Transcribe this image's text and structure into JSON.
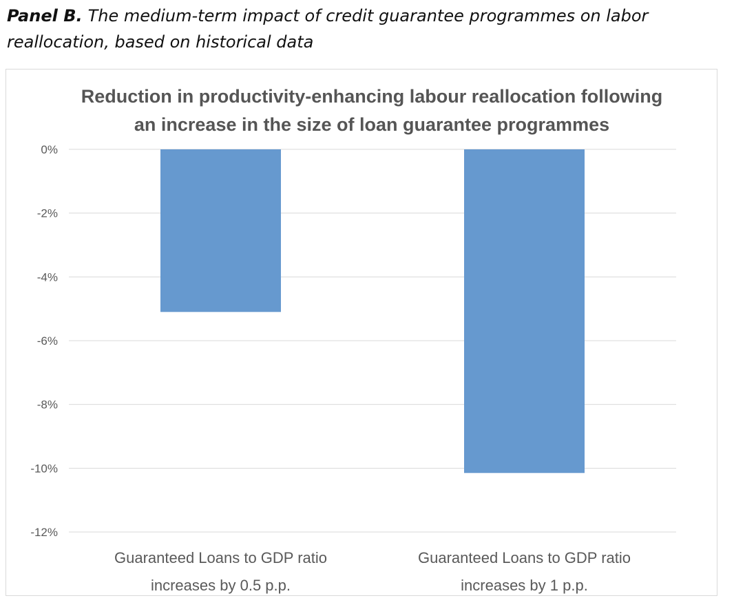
{
  "caption": {
    "label": "Panel B.",
    "text": "The medium-term impact of credit guarantee programmes on labor reallocation, based on historical data"
  },
  "colors": {
    "bar": "#6699cf",
    "grid": "#d9d9d9",
    "text": "#595959",
    "title": "#555555"
  },
  "chart_data": {
    "type": "bar",
    "title_lines": [
      "Reduction in productivity-enhancing labour reallocation following",
      "an increase in the size of loan guarantee programmes"
    ],
    "categories": [
      [
        "Guaranteed Loans to GDP ratio",
        "increases by 0.5 p.p."
      ],
      [
        "Guaranteed Loans to GDP ratio",
        "increases by 1 p.p."
      ]
    ],
    "values": [
      -5.1,
      -10.15
    ],
    "ylim": [
      -12,
      0
    ],
    "yticks": [
      0,
      -2,
      -4,
      -6,
      -8,
      -10,
      -12
    ],
    "ytick_labels": [
      "0%",
      "-2%",
      "-4%",
      "-6%",
      "-8%",
      "-10%",
      "-12%"
    ],
    "grid": true,
    "legend": "none"
  }
}
